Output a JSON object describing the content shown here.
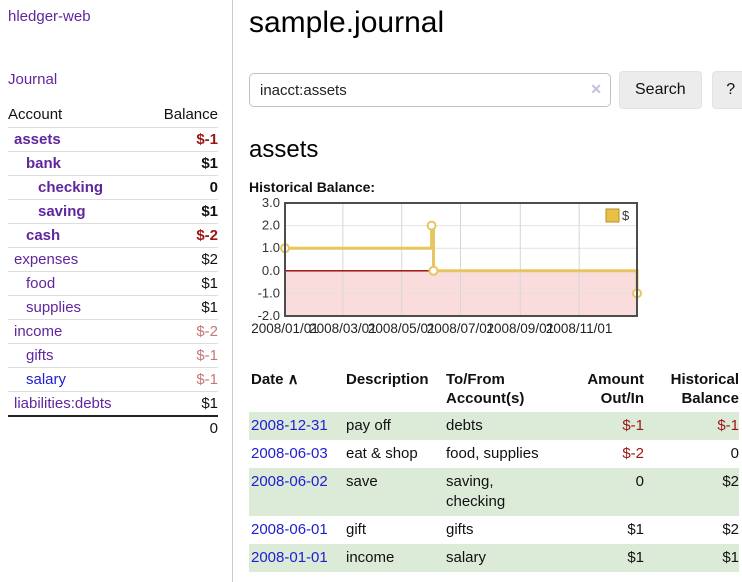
{
  "sidebar": {
    "app_title": "hledger-web",
    "journal_link": "Journal",
    "accounts_table": {
      "headers": {
        "account": "Account",
        "balance": "Balance"
      },
      "rows": [
        {
          "name": "assets",
          "balance": "$-1",
          "level": 1,
          "bold": true,
          "balance_class": "neg-strong",
          "link_class": "purple"
        },
        {
          "name": "bank",
          "balance": "$1",
          "level": 2,
          "bold": true,
          "balance_class": "",
          "link_class": "purple"
        },
        {
          "name": "checking",
          "balance": "0",
          "level": 3,
          "bold": true,
          "balance_class": "",
          "link_class": "purple"
        },
        {
          "name": "saving",
          "balance": "$1",
          "level": 3,
          "bold": true,
          "balance_class": "",
          "link_class": "purple"
        },
        {
          "name": "cash",
          "balance": "$-2",
          "level": 2,
          "bold": true,
          "balance_class": "neg-strong",
          "link_class": "purple"
        },
        {
          "name": "expenses",
          "balance": "$2",
          "level": 1,
          "bold": false,
          "balance_class": "",
          "link_class": "purple"
        },
        {
          "name": "food",
          "balance": "$1",
          "level": 2,
          "bold": false,
          "balance_class": "",
          "link_class": "purple"
        },
        {
          "name": "supplies",
          "balance": "$1",
          "level": 2,
          "bold": false,
          "balance_class": "",
          "link_class": "purple"
        },
        {
          "name": "income",
          "balance": "$-2",
          "level": 1,
          "bold": false,
          "balance_class": "neg-soft",
          "link_class": "purple"
        },
        {
          "name": "gifts",
          "balance": "$-1",
          "level": 2,
          "bold": false,
          "balance_class": "neg-soft",
          "link_class": "purple"
        },
        {
          "name": "salary",
          "balance": "$-1",
          "level": 2,
          "bold": false,
          "balance_class": "neg-soft",
          "link_class": "blue"
        },
        {
          "name": "liabilities:debts",
          "balance": "$1",
          "level": 1,
          "bold": false,
          "balance_class": "",
          "link_class": "purple"
        }
      ],
      "total": "0"
    }
  },
  "header": {
    "title": "sample.journal"
  },
  "search": {
    "query": "inacct:assets",
    "clear_icon": "✕",
    "button_label": "Search",
    "help_label": "?"
  },
  "account_page": {
    "title": "assets",
    "chart_label": "Historical Balance:"
  },
  "chart_data": {
    "type": "line",
    "step": true,
    "title": "Historical Balance:",
    "series": [
      {
        "name": "$",
        "color": "#e7c55f",
        "points": [
          [
            "2008-01-01",
            1
          ],
          [
            "2008-06-01",
            2
          ],
          [
            "2008-06-03",
            0
          ],
          [
            "2008-12-31",
            -1
          ]
        ]
      }
    ],
    "x_range": [
      "2008-01-01",
      "2008-12-31"
    ],
    "ylim": [
      -2,
      3
    ],
    "yticks": [
      3.0,
      2.0,
      1.0,
      0.0,
      -1.0,
      -2.0
    ],
    "xtick_labels": [
      "2008/01/01",
      "2008/03/01",
      "2008/05/01",
      "2008/07/01",
      "2008/09/01",
      "2008/11/01"
    ],
    "grid": true,
    "legend": {
      "label": "$",
      "position": "top-right"
    },
    "colors": {
      "line": "#e7c55f",
      "marker_fill": "#ffffff",
      "negative_region": "#fbdcdc",
      "zero_line": "#990000",
      "border": "#4d4d4d",
      "grid_h": "#e2e2e2",
      "grid_v": "#d6d6d6",
      "legend_fill": "#e9bf46",
      "legend_border": "#b3922f"
    }
  },
  "register": {
    "sort_icon": "∧",
    "columns": [
      {
        "label": "Date",
        "align": "left",
        "cls": "c-date",
        "sortable": true
      },
      {
        "label": "Description",
        "align": "left",
        "cls": "c-desc",
        "sortable": false
      },
      {
        "label": "To/From\nAccount(s)",
        "align": "left",
        "cls": "c-acct",
        "sortable": false
      },
      {
        "label": "Amount\nOut/In",
        "align": "right",
        "cls": "c-amt",
        "sortable": false
      },
      {
        "label": "Historical\nBalance",
        "align": "right",
        "cls": "c-bal",
        "sortable": false
      }
    ],
    "rows": [
      {
        "date": "2008-12-31",
        "description": "pay off",
        "accounts": "debts",
        "amount": "$-1",
        "amount_neg": true,
        "balance": "$-1",
        "balance_neg": true,
        "stripe": true
      },
      {
        "date": "2008-06-03",
        "description": "eat & shop",
        "accounts": "food, supplies",
        "amount": "$-2",
        "amount_neg": true,
        "balance": "0",
        "balance_neg": false,
        "stripe": false
      },
      {
        "date": "2008-06-02",
        "description": "save",
        "accounts": "saving,\nchecking",
        "amount": "0",
        "amount_neg": false,
        "balance": "$2",
        "balance_neg": false,
        "stripe": true
      },
      {
        "date": "2008-06-01",
        "description": "gift",
        "accounts": "gifts",
        "amount": "$1",
        "amount_neg": false,
        "balance": "$2",
        "balance_neg": false,
        "stripe": false
      },
      {
        "date": "2008-01-01",
        "description": "income",
        "accounts": "salary",
        "amount": "$1",
        "amount_neg": false,
        "balance": "$1",
        "balance_neg": false,
        "stripe": true
      }
    ]
  }
}
